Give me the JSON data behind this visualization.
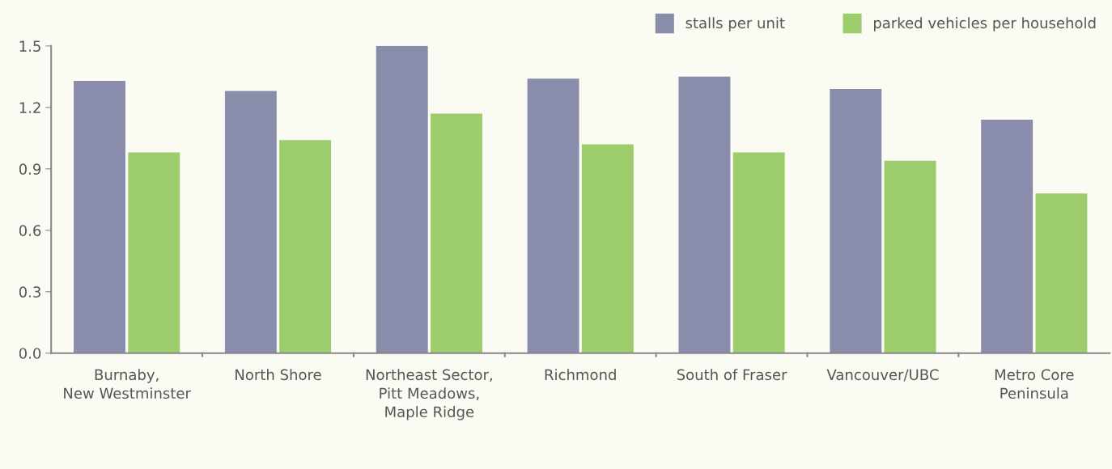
{
  "chart_data": {
    "type": "bar",
    "categories": [
      "Burnaby,\nNew Westminster",
      "North Shore",
      "Northeast Sector,\nPitt Meadows,\nMaple Ridge",
      "Richmond",
      "South of Fraser",
      "Vancouver/UBC",
      "Metro Core\nPeninsula"
    ],
    "series": [
      {
        "name": "stalls per unit",
        "color": "#8a8cab",
        "values": [
          1.33,
          1.28,
          1.5,
          1.34,
          1.35,
          1.29,
          1.14
        ]
      },
      {
        "name": "parked vehicles per household",
        "color": "#9dcc6c",
        "values": [
          0.98,
          1.04,
          1.17,
          1.02,
          0.98,
          0.94,
          0.78
        ]
      }
    ],
    "ylim": [
      0,
      1.5
    ],
    "yticks": [
      {
        "value": 0,
        "label": "0.0"
      },
      {
        "value": 0.3,
        "label": "0.3"
      },
      {
        "value": 0.6,
        "label": "0.6"
      },
      {
        "value": 0.9,
        "label": "0.9"
      },
      {
        "value": 1.2,
        "label": "1.2"
      },
      {
        "value": 1.5,
        "label": "1.5"
      }
    ],
    "grid": false,
    "legend": "top right"
  }
}
